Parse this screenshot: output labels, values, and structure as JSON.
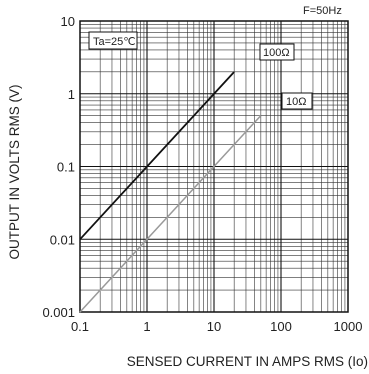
{
  "chart_data": {
    "type": "line",
    "title": "",
    "corner_note": "F=50Hz",
    "condition_label": "Ta=25℃",
    "xlabel": "SENSED CURRENT IN AMPS RMS (Io)",
    "ylabel": "OUTPUT IN VOLTS RMS (V)",
    "xscale": "log",
    "yscale": "log",
    "xlim": [
      0.1,
      1000
    ],
    "ylim": [
      0.001,
      10
    ],
    "x_ticks": [
      "0.1",
      "1",
      "10",
      "100",
      "1000"
    ],
    "y_ticks": [
      "0.001",
      "0.01",
      "0.1",
      "1",
      "10"
    ],
    "grid": true,
    "series": [
      {
        "name": "100Ω",
        "x": [
          0.1,
          20
        ],
        "y": [
          0.01,
          2
        ],
        "color": "#111111"
      },
      {
        "name": "10Ω",
        "x": [
          0.1,
          50
        ],
        "y": [
          0.001,
          0.5
        ],
        "color": "#9a9a9a"
      }
    ]
  }
}
